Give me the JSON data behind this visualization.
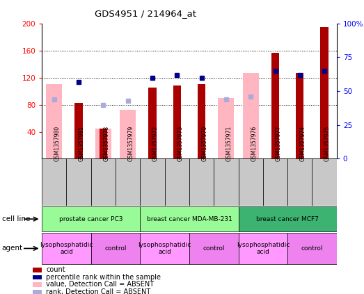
{
  "title": "GDS4951 / 214964_at",
  "samples": [
    "GSM1357980",
    "GSM1357981",
    "GSM1357978",
    "GSM1357979",
    "GSM1357972",
    "GSM1357973",
    "GSM1357970",
    "GSM1357971",
    "GSM1357976",
    "GSM1357977",
    "GSM1357974",
    "GSM1357975"
  ],
  "count_values": [
    null,
    83,
    45,
    null,
    105,
    108,
    110,
    null,
    null,
    157,
    127,
    195
  ],
  "count_absent": [
    null,
    null,
    null,
    null,
    null,
    null,
    null,
    null,
    null,
    null,
    null,
    null
  ],
  "pct_rank_present": [
    null,
    57,
    null,
    null,
    60,
    62,
    60,
    null,
    null,
    65,
    62,
    65
  ],
  "pct_rank_absent": [
    44,
    null,
    40,
    43,
    null,
    null,
    null,
    44,
    46,
    null,
    null,
    null
  ],
  "value_absent": [
    110,
    null,
    45,
    72,
    null,
    null,
    null,
    90,
    127,
    null,
    null,
    null
  ],
  "cell_lines": [
    {
      "label": "prostate cancer PC3",
      "start": 0,
      "end": 4,
      "color": "#98FB98"
    },
    {
      "label": "breast cancer MDA-MB-231",
      "start": 4,
      "end": 8,
      "color": "#98FB98"
    },
    {
      "label": "breast cancer MCF7",
      "start": 8,
      "end": 12,
      "color": "#3CB371"
    }
  ],
  "agents": [
    {
      "label": "lysophosphatidic\nacid",
      "start": 0,
      "end": 2,
      "color": "#FF99FF"
    },
    {
      "label": "control",
      "start": 2,
      "end": 4,
      "color": "#EE82EE"
    },
    {
      "label": "lysophosphatidic\nacid",
      "start": 4,
      "end": 6,
      "color": "#FF99FF"
    },
    {
      "label": "control",
      "start": 6,
      "end": 8,
      "color": "#EE82EE"
    },
    {
      "label": "lysophosphatidic\nacid",
      "start": 8,
      "end": 10,
      "color": "#FF99FF"
    },
    {
      "label": "control",
      "start": 10,
      "end": 12,
      "color": "#EE82EE"
    }
  ],
  "ylim_left": [
    0,
    200
  ],
  "ylim_right": [
    0,
    100
  ],
  "yticks_left": [
    40,
    80,
    120,
    160,
    200
  ],
  "yticks_right": [
    0,
    25,
    50,
    75,
    100
  ],
  "bar_color_count": "#AA0000",
  "bar_color_absent": "#FFB6C1",
  "dot_color_rank": "#00008B",
  "dot_color_rank_absent": "#AAAADD",
  "legend_items": [
    {
      "shape": "rect",
      "color": "#AA0000",
      "label": "count"
    },
    {
      "shape": "rect",
      "color": "#00008B",
      "label": "percentile rank within the sample"
    },
    {
      "shape": "rect",
      "color": "#FFB6C1",
      "label": "value, Detection Call = ABSENT"
    },
    {
      "shape": "rect",
      "color": "#AAAADD",
      "label": "rank, Detection Call = ABSENT"
    }
  ]
}
